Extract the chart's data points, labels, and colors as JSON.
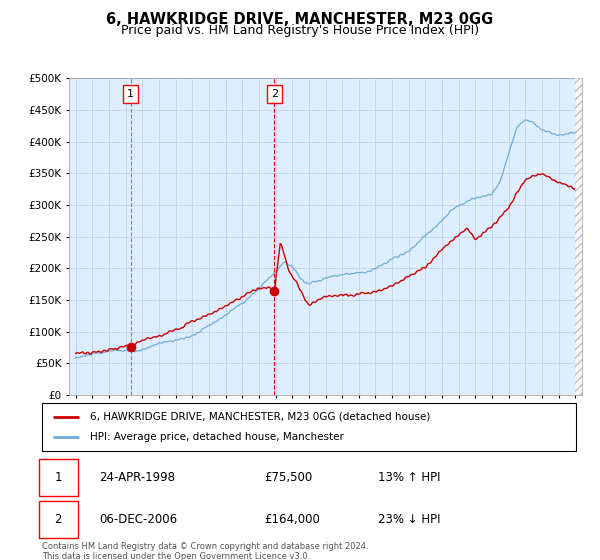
{
  "title": "6, HAWKRIDGE DRIVE, MANCHESTER, M23 0GG",
  "subtitle": "Price paid vs. HM Land Registry's House Price Index (HPI)",
  "ylim": [
    0,
    500000
  ],
  "yticks": [
    0,
    50000,
    100000,
    150000,
    200000,
    250000,
    300000,
    350000,
    400000,
    450000,
    500000
  ],
  "x_start_year": 1995,
  "x_end_year": 2025,
  "sale1_date": 1998.31,
  "sale1_price": 75500,
  "sale2_date": 2006.92,
  "sale2_price": 164000,
  "hpi_color": "#6baed6",
  "price_color": "#cc0000",
  "vline1_color": "#aaaaaa",
  "vline2_color": "#cc0000",
  "background_color": "#ddeeff",
  "grid_color": "#bbccdd",
  "legend1_label": "6, HAWKRIDGE DRIVE, MANCHESTER, M23 0GG (detached house)",
  "legend2_label": "HPI: Average price, detached house, Manchester",
  "table_row1": [
    "1",
    "24-APR-1998",
    "£75,500",
    "13% ↑ HPI"
  ],
  "table_row2": [
    "2",
    "06-DEC-2006",
    "£164,000",
    "23% ↓ HPI"
  ],
  "footnote": "Contains HM Land Registry data © Crown copyright and database right 2024.\nThis data is licensed under the Open Government Licence v3.0.",
  "hpi_keypoints_x": [
    1995,
    1996,
    1997,
    1998,
    1999,
    2000,
    2001,
    2002,
    2003,
    2004,
    2005,
    2006,
    2007,
    2007.5,
    2008,
    2008.5,
    2009,
    2009.5,
    2010,
    2011,
    2012,
    2013,
    2014,
    2015,
    2016,
    2017,
    2017.5,
    2018,
    2019,
    2020,
    2020.5,
    2021,
    2021.5,
    2022,
    2022.5,
    2023,
    2024,
    2025
  ],
  "hpi_keypoints_y": [
    58000,
    62000,
    65000,
    68000,
    72000,
    82000,
    88000,
    95000,
    108000,
    125000,
    145000,
    170000,
    195000,
    210000,
    205000,
    185000,
    175000,
    178000,
    185000,
    190000,
    193000,
    200000,
    215000,
    230000,
    255000,
    280000,
    295000,
    305000,
    320000,
    325000,
    345000,
    390000,
    430000,
    440000,
    435000,
    425000,
    415000,
    420000
  ],
  "price_keypoints_x": [
    1995,
    1996,
    1997,
    1998.31,
    1999,
    2000,
    2001,
    2002,
    2003,
    2004,
    2005,
    2006,
    2006.92,
    2007.3,
    2007.8,
    2008.5,
    2009,
    2009.5,
    2010,
    2011,
    2012,
    2013,
    2014,
    2015,
    2016,
    2017,
    2018,
    2018.5,
    2019,
    2019.5,
    2020,
    2021,
    2022,
    2022.5,
    2023,
    2024,
    2025
  ],
  "price_keypoints_y": [
    65000,
    68000,
    72000,
    75500,
    80000,
    90000,
    100000,
    112000,
    125000,
    140000,
    155000,
    170000,
    164000,
    240000,
    195000,
    165000,
    140000,
    148000,
    155000,
    158000,
    155000,
    160000,
    170000,
    185000,
    200000,
    230000,
    250000,
    260000,
    245000,
    255000,
    265000,
    295000,
    340000,
    345000,
    350000,
    335000,
    325000
  ]
}
